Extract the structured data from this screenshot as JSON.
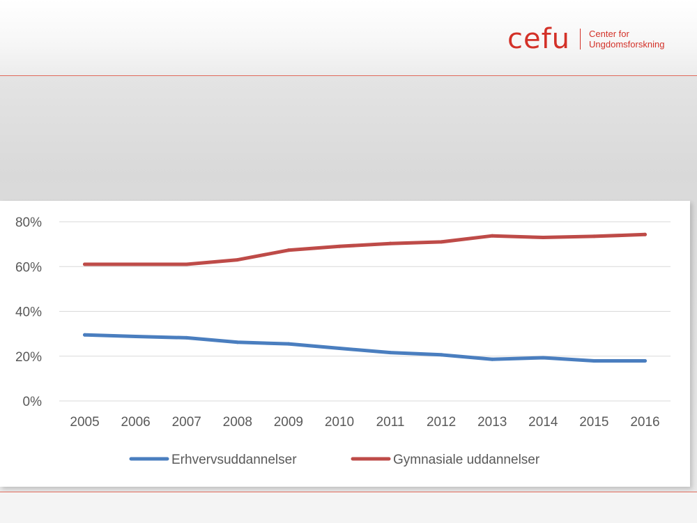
{
  "logo": {
    "word": "cefu",
    "line1": "Center for",
    "line2": "Ungdomsforskning"
  },
  "colors": {
    "brand": "#d33128",
    "series_blue": "#4a7ebf",
    "series_red": "#be4b48",
    "grid": "#d9d9d9",
    "rule": "#e06a5a"
  },
  "chart_data": {
    "type": "line",
    "title": "",
    "xlabel": "",
    "ylabel": "",
    "x": [
      "2005",
      "2006",
      "2007",
      "2008",
      "2009",
      "2010",
      "2011",
      "2012",
      "2013",
      "2014",
      "2015",
      "2016"
    ],
    "ylim": [
      0,
      80
    ],
    "yticks": [
      0,
      20,
      40,
      60,
      80
    ],
    "ytick_labels": [
      "0%",
      "20%",
      "40%",
      "60%",
      "80%"
    ],
    "grid": true,
    "legend": "bottom",
    "series": [
      {
        "name": "Erhvervsuddannelser",
        "color": "#4a7ebf",
        "values": [
          29.5,
          28.8,
          28.2,
          26.2,
          25.5,
          23.5,
          21.6,
          20.6,
          18.6,
          19.3,
          17.9,
          17.9
        ]
      },
      {
        "name": "Gymnasiale uddannelser",
        "color": "#be4b48",
        "values": [
          61.0,
          61.0,
          61.0,
          63.0,
          67.3,
          69.0,
          70.3,
          71.0,
          73.7,
          73.0,
          73.5,
          74.3
        ]
      }
    ]
  }
}
